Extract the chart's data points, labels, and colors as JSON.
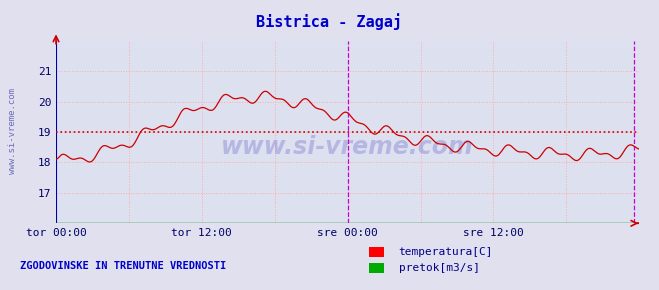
{
  "title": "Bistrica - Zagaj",
  "title_color": "#0000cc",
  "bg_color": "#e0e0ee",
  "plot_bg_color": "#dde0ef",
  "grid_color": "#ffaaaa",
  "xlabel_color": "#000066",
  "ylabel_color": "#000066",
  "watermark_text": "www.si-vreme.com",
  "watermark_color": "#000088",
  "side_text": "www.si-vreme.com",
  "bottom_label": "ZGODOVINSKE IN TRENUTNE VREDNOSTI",
  "legend_items": [
    "temperatura[C]",
    "pretok[m3/s]"
  ],
  "legend_colors": [
    "#ff0000",
    "#00aa00"
  ],
  "xlim": [
    0,
    576
  ],
  "ylim": [
    16,
    22
  ],
  "yticks": [
    17,
    18,
    19,
    20,
    21
  ],
  "xtick_positions": [
    0,
    144,
    288,
    432
  ],
  "xtick_labels": [
    "tor 00:00",
    "tor 12:00",
    "sre 00:00",
    "sre 12:00"
  ],
  "temp_color": "#cc0000",
  "temp_avg_color": "#cc0000",
  "flow_color": "#00bb00",
  "temp_avg": 19.0,
  "midnight_line_x": 288,
  "midnight_line_color": "#cc00cc",
  "right_line_x": 571,
  "right_line_color": "#cc00cc",
  "arrow_color": "#cc0000"
}
